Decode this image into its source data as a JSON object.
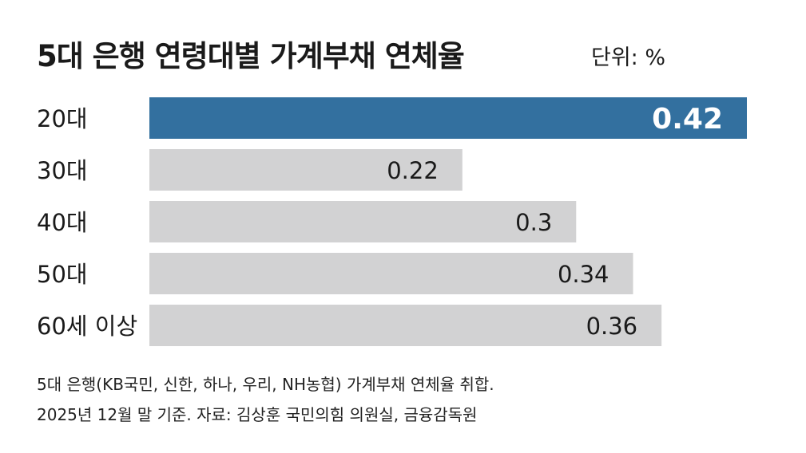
{
  "title": "5대 은행 연령대별 가계부채 연체율",
  "unit_label": "단위: %",
  "chart_data": {
    "type": "bar",
    "orientation": "horizontal",
    "categories": [
      "20대",
      "30대",
      "40대",
      "50대",
      "60세 이상"
    ],
    "values": [
      0.42,
      0.22,
      0.3,
      0.34,
      0.36
    ],
    "value_labels": [
      "0.42",
      "0.22",
      "0.3",
      "0.34",
      "0.36"
    ],
    "highlight_index": 0,
    "xlim": [
      0,
      0.42
    ],
    "grid": false,
    "colors": {
      "highlight": "#33709f",
      "default": "#d2d2d3"
    }
  },
  "notes": {
    "line1": "5대 은행(KB국민, 신한, 하나, 우리, NH농협) 가계부채 연체율 취합.",
    "line2": "2025년 12월 말 기준. 자료: 김상훈 국민의힘 의원실, 금융감독원"
  }
}
